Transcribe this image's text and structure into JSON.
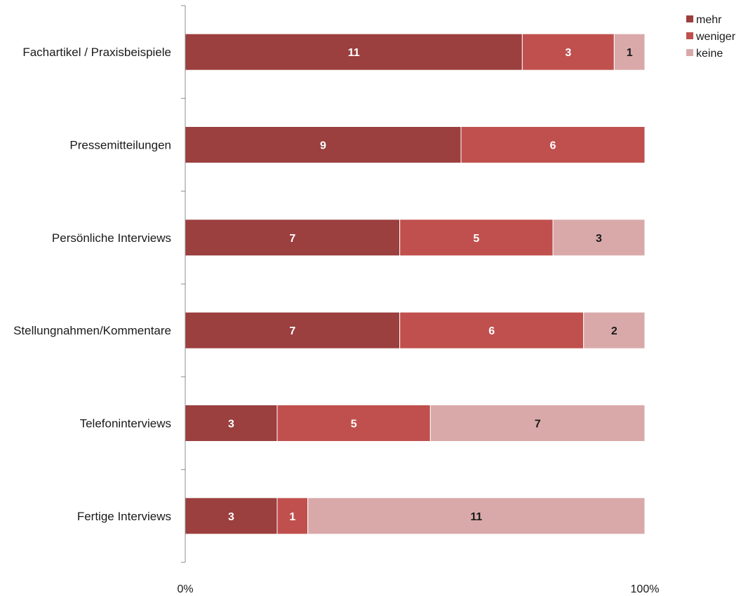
{
  "chart_data": {
    "type": "bar",
    "orientation": "horizontal",
    "stacking": "percent",
    "categories": [
      "Fachartikel / Praxisbeispiele",
      "Pressemitteilungen",
      "Persönliche Interviews",
      "Stellungnahmen/Kommentare",
      "Telefoninterviews",
      "Fertige Interviews"
    ],
    "series": [
      {
        "name": "mehr",
        "color": "#9b3f3f",
        "label_color": "#ffffff",
        "values": [
          11,
          9,
          7,
          7,
          3,
          3
        ]
      },
      {
        "name": "weniger",
        "color": "#c0504d",
        "label_color": "#ffffff",
        "values": [
          3,
          6,
          5,
          6,
          5,
          1
        ]
      },
      {
        "name": "keine",
        "color": "#d9a9a9",
        "label_color": "#1a1a1a",
        "values": [
          1,
          0,
          3,
          2,
          7,
          11
        ]
      }
    ],
    "x_ticks": [
      "0%",
      "100%"
    ],
    "xlim": [
      0,
      100
    ],
    "legend_position": "top-right",
    "grid": false,
    "title": "",
    "xlabel": "",
    "ylabel": ""
  }
}
